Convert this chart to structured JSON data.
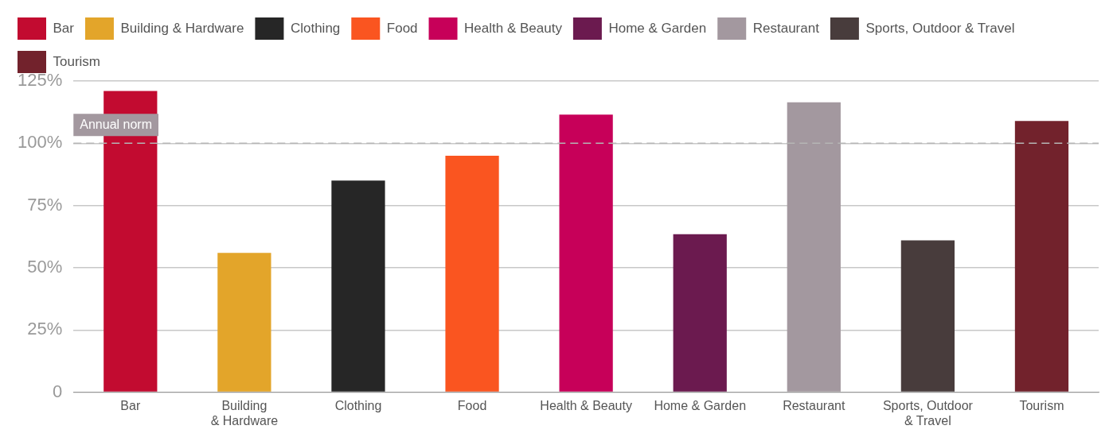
{
  "chart_data": {
    "type": "bar",
    "categories": [
      "Bar",
      "Building & Hardware",
      "Clothing",
      "Food",
      "Health & Beauty",
      "Home & Garden",
      "Restaurant",
      "Sports, Outdoor & Travel",
      "Tourism"
    ],
    "series": [
      {
        "name": "Bar",
        "color": "#c20b30",
        "values": [
          121,
          null,
          null,
          null,
          null,
          null,
          null,
          null,
          null
        ]
      },
      {
        "name": "Building & Hardware",
        "color": "#e3a52a",
        "values": [
          null,
          56,
          null,
          null,
          null,
          null,
          null,
          null,
          null
        ]
      },
      {
        "name": "Clothing",
        "color": "#262626",
        "values": [
          null,
          null,
          85,
          null,
          null,
          null,
          null,
          null,
          null
        ]
      },
      {
        "name": "Food",
        "color": "#fa5520",
        "values": [
          null,
          null,
          null,
          95,
          null,
          null,
          null,
          null,
          null
        ]
      },
      {
        "name": "Health & Beauty",
        "color": "#c70059",
        "values": [
          null,
          null,
          null,
          null,
          111.5,
          null,
          null,
          null,
          null
        ]
      },
      {
        "name": "Home & Garden",
        "color": "#6b1a4f",
        "values": [
          null,
          null,
          null,
          null,
          null,
          63.5,
          null,
          null,
          null
        ]
      },
      {
        "name": "Restaurant",
        "color": "#a3989f",
        "values": [
          null,
          null,
          null,
          null,
          null,
          null,
          116.5,
          null,
          null
        ]
      },
      {
        "name": "Sports, Outdoor & Travel",
        "color": "#483c3c",
        "values": [
          null,
          null,
          null,
          null,
          null,
          null,
          null,
          61,
          null
        ]
      },
      {
        "name": "Tourism",
        "color": "#72222c",
        "values": [
          null,
          null,
          null,
          null,
          null,
          null,
          null,
          null,
          109
        ]
      }
    ],
    "ylim": [
      0,
      125
    ],
    "yticks": [
      {
        "value": 0,
        "label": "0"
      },
      {
        "value": 25,
        "label": "25%"
      },
      {
        "value": 50,
        "label": "50%"
      },
      {
        "value": 75,
        "label": "75%"
      },
      {
        "value": 100,
        "label": "100%"
      },
      {
        "value": 125,
        "label": "125%"
      }
    ],
    "grid": "y",
    "legend": "top left",
    "ref_lines": [
      {
        "axis": "y",
        "value": 100,
        "label": "Annual norm",
        "color": "#b5b5b5",
        "line_style": "dashed"
      }
    ]
  }
}
